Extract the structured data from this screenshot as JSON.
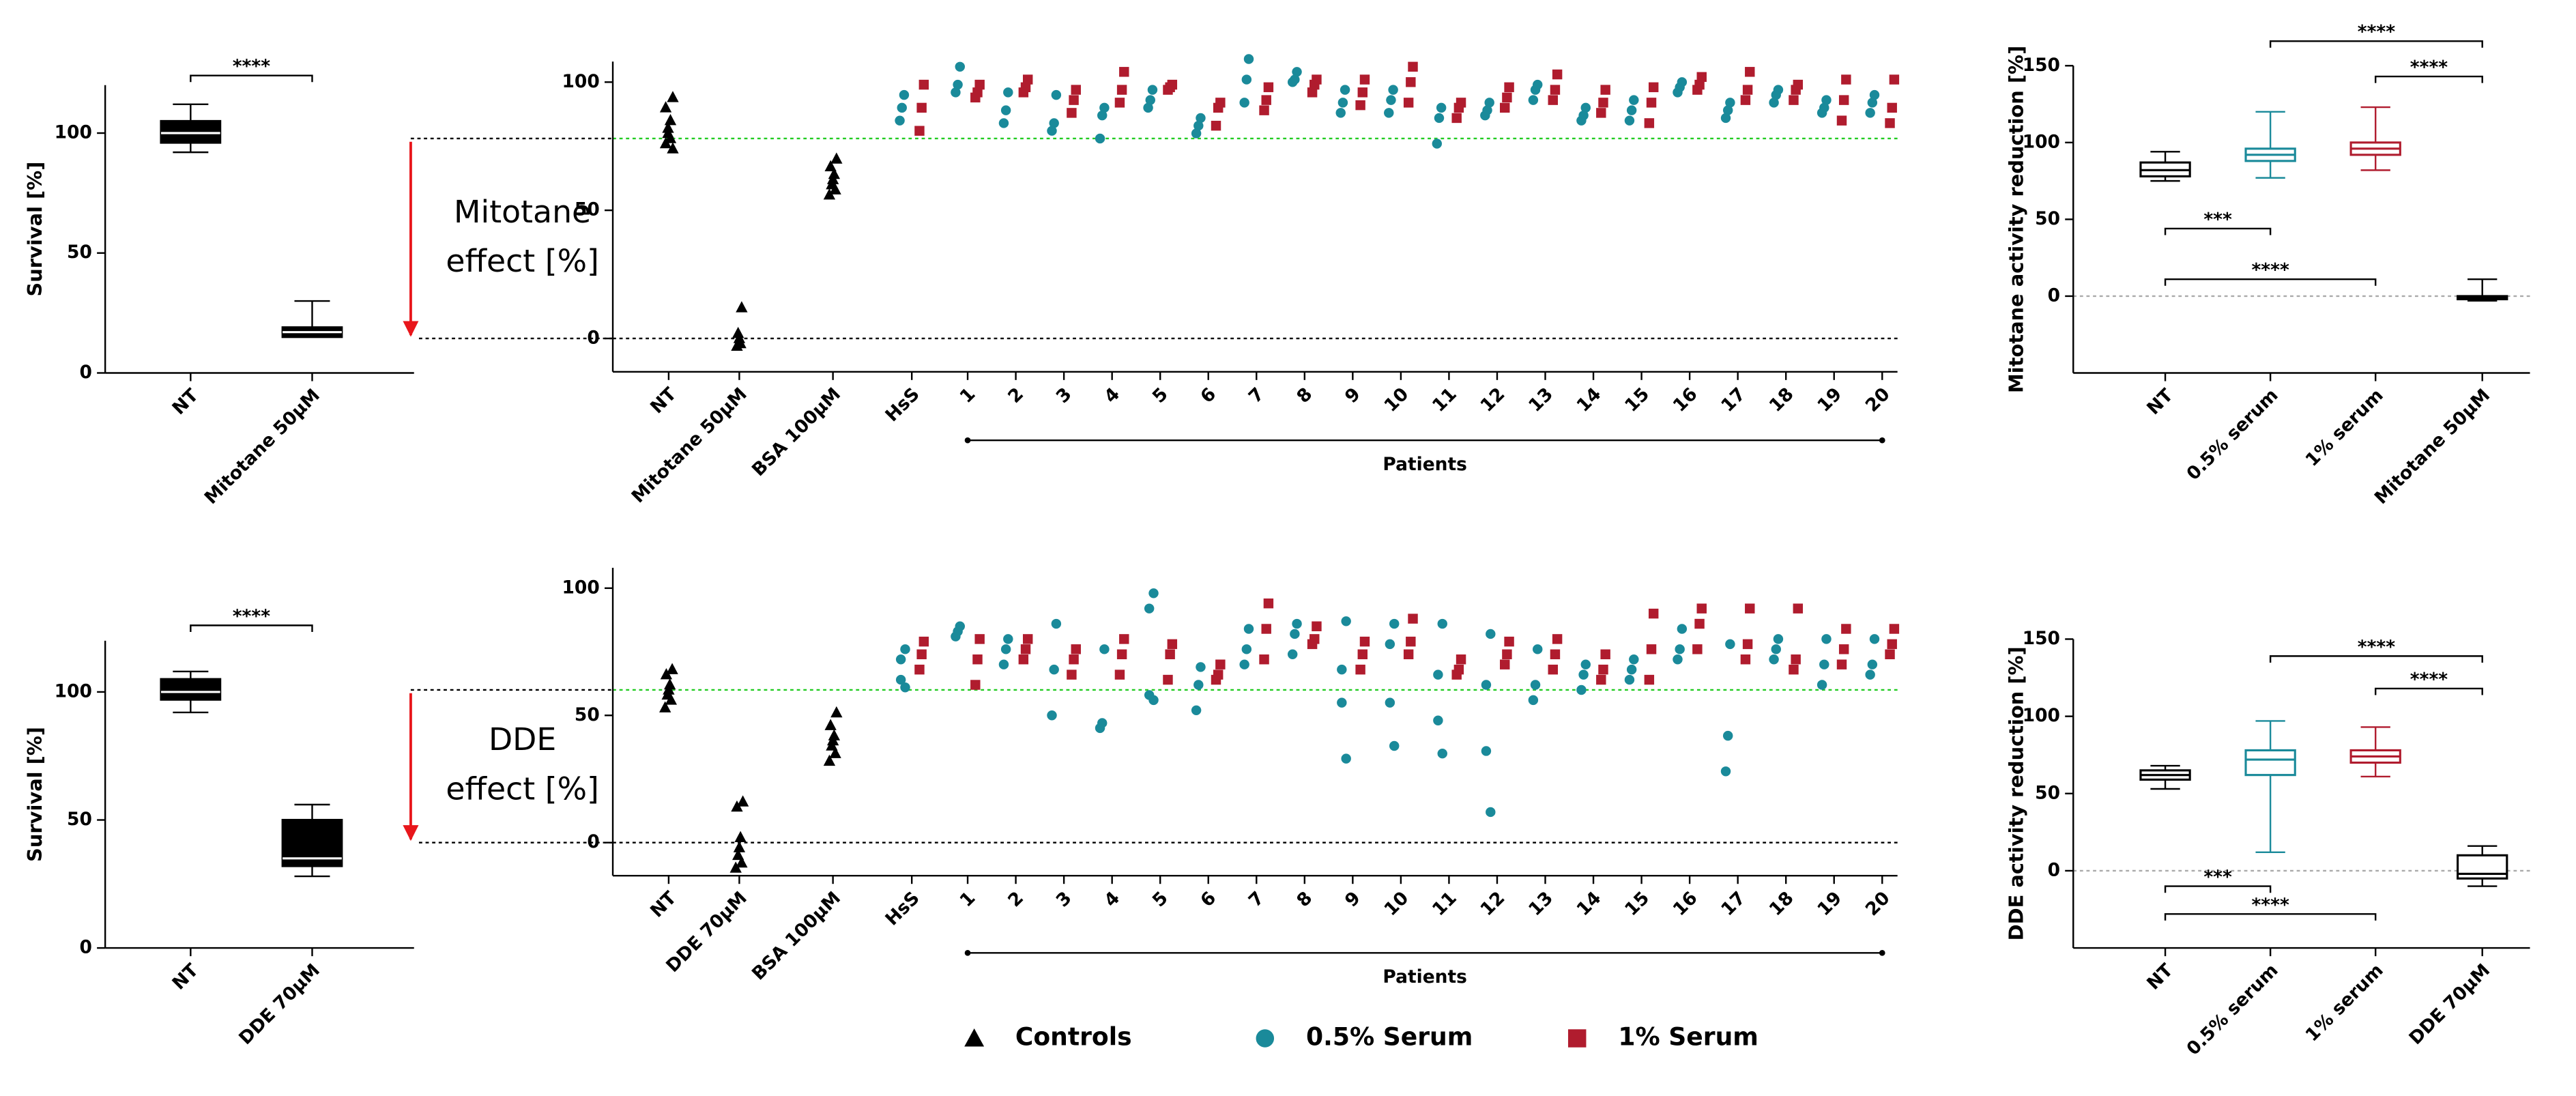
{
  "chart_data": [
    {
      "type": "box",
      "ylabel": "Survival [%]",
      "categories": [
        "NT",
        "Mitotane 50μM"
      ],
      "boxes": [
        {
          "min": 92,
          "q1": 96,
          "median": 100,
          "q3": 105,
          "max": 112
        },
        {
          "min": 15,
          "q1": 15,
          "median": 17,
          "q3": 19,
          "max": 30
        }
      ],
      "colors": [
        "#000000",
        "#000000"
      ],
      "filled": true,
      "ylim": [
        0,
        120
      ],
      "yticks": [
        0,
        50,
        100
      ],
      "significance": [
        {
          "from": 0,
          "to": 1,
          "y": 124,
          "label": "****"
        }
      ]
    },
    {
      "type": "dot",
      "xlabel": "Patients",
      "annotation": [
        "Mitotane",
        "effect [%]"
      ],
      "categories": [
        "NT",
        "Mitotane 50μM",
        "BSA 100μM",
        "HsS",
        "1",
        "2",
        "3",
        "4",
        "5",
        "6",
        "7",
        "8",
        "9",
        "10",
        "11",
        "12",
        "13",
        "14",
        "15",
        "16",
        "17",
        "18",
        "19",
        "20"
      ],
      "ylim": [
        -13,
        108
      ],
      "yticks": [
        0,
        50,
        100
      ],
      "ref_lines": [
        {
          "value": 0,
          "color": "#000000"
        },
        {
          "value": 78,
          "color": "#22cc22"
        }
      ],
      "series": [
        {
          "color": "#000000",
          "marker": "triangle",
          "values": [
            [
              94,
              90,
              85,
              82,
              80,
              78,
              76,
              74
            ],
            [
              12,
              2,
              0,
              -2,
              -3
            ],
            [
              70,
              67,
              64,
              62,
              60,
              58,
              56
            ],
            null,
            null,
            null,
            null,
            null,
            null,
            null,
            null,
            null,
            null,
            null,
            null,
            null,
            null,
            null,
            null,
            null,
            null,
            null,
            null,
            null
          ]
        },
        {
          "color": "#1a8a9a",
          "marker": "circle",
          "values": [
            null,
            null,
            null,
            [
              95,
              90,
              85
            ],
            [
              106,
              99,
              96
            ],
            [
              96,
              89,
              84
            ],
            [
              95,
              84,
              81
            ],
            [
              90,
              87,
              78
            ],
            [
              97,
              93,
              90
            ],
            [
              86,
              83,
              80
            ],
            [
              109,
              101,
              92
            ],
            [
              104,
              101,
              100
            ],
            [
              97,
              92,
              88
            ],
            [
              97,
              93,
              88
            ],
            [
              90,
              86,
              76
            ],
            [
              92,
              89,
              87
            ],
            [
              99,
              97,
              93
            ],
            [
              90,
              87,
              85
            ],
            [
              93,
              89,
              85
            ],
            [
              100,
              98,
              96
            ],
            [
              92,
              89,
              86
            ],
            [
              97,
              95,
              92
            ],
            [
              93,
              90,
              88
            ],
            [
              95,
              92,
              88
            ]
          ]
        },
        {
          "color": "#b01c2e",
          "marker": "square",
          "values": [
            null,
            null,
            null,
            [
              99,
              90,
              81
            ],
            [
              99,
              96,
              94
            ],
            [
              101,
              98,
              96
            ],
            [
              97,
              93,
              88
            ],
            [
              104,
              97,
              92
            ],
            [
              99,
              98,
              97
            ],
            [
              92,
              90,
              83
            ],
            [
              98,
              93,
              89
            ],
            [
              101,
              99,
              96
            ],
            [
              101,
              96,
              91
            ],
            [
              106,
              100,
              92
            ],
            [
              92,
              90,
              86
            ],
            [
              98,
              94,
              90
            ],
            [
              103,
              97,
              93
            ],
            [
              97,
              92,
              88
            ],
            [
              98,
              92,
              84
            ],
            [
              102,
              99,
              97
            ],
            [
              104,
              97,
              93
            ],
            [
              99,
              97,
              93
            ],
            [
              101,
              93,
              85
            ],
            [
              101,
              90,
              84
            ]
          ]
        }
      ]
    },
    {
      "type": "box",
      "ylabel": "Mitotane activity reduction [%]",
      "categories": [
        "NT",
        "0.5% serum",
        "1% serum",
        "Mitotane 50μM"
      ],
      "boxes": [
        {
          "min": 75,
          "q1": 78,
          "median": 82,
          "q3": 87,
          "max": 94
        },
        {
          "min": 77,
          "q1": 88,
          "median": 92,
          "q3": 96,
          "max": 120
        },
        {
          "min": 82,
          "q1": 92,
          "median": 96,
          "q3": 100,
          "max": 123
        },
        {
          "min": -3,
          "q1": -2,
          "median": -1,
          "q3": 0,
          "max": 11
        }
      ],
      "colors": [
        "#000000",
        "#1a8a9a",
        "#b01c2e",
        "#000000"
      ],
      "filled": false,
      "ylim": [
        -50,
        150
      ],
      "yticks": [
        0,
        50,
        100,
        150
      ],
      "ref_lines": [
        {
          "value": 0,
          "color": "#aaaaaa"
        }
      ],
      "significance": [
        {
          "from": 0,
          "to": 1,
          "y": 44,
          "label": "***"
        },
        {
          "from": 0,
          "to": 2,
          "y": 11,
          "label": "****"
        },
        {
          "from": 1,
          "to": 3,
          "y": 166,
          "label": "****"
        },
        {
          "from": 2,
          "to": 3,
          "y": 143,
          "label": "****"
        }
      ]
    },
    {
      "type": "box",
      "ylabel": "Survival [%]",
      "categories": [
        "NT",
        "DDE 70μM"
      ],
      "boxes": [
        {
          "min": 92,
          "q1": 97,
          "median": 100,
          "q3": 105,
          "max": 108
        },
        {
          "min": 28,
          "q1": 32,
          "median": 35,
          "q3": 50,
          "max": 56
        }
      ],
      "colors": [
        "#000000",
        "#000000"
      ],
      "filled": true,
      "ylim": [
        0,
        120
      ],
      "yticks": [
        0,
        50,
        100
      ],
      "significance": [
        {
          "from": 0,
          "to": 1,
          "y": 126,
          "label": "****"
        }
      ]
    },
    {
      "type": "dot",
      "xlabel": "Patients",
      "annotation": [
        "DDE",
        "effect [%]"
      ],
      "categories": [
        "NT",
        "DDE 70μM",
        "BSA 100μM",
        "HsS",
        "1",
        "2",
        "3",
        "4",
        "5",
        "6",
        "7",
        "8",
        "9",
        "10",
        "11",
        "12",
        "13",
        "14",
        "15",
        "16",
        "17",
        "18",
        "19",
        "20"
      ],
      "ylim": [
        -13,
        108
      ],
      "yticks": [
        0,
        50,
        100
      ],
      "ref_lines": [
        {
          "value": 0,
          "color": "#000000"
        },
        {
          "value": 60,
          "color": "#22cc22"
        }
      ],
      "series": [
        {
          "name": "Controls",
          "color": "#000000",
          "marker": "triangle",
          "values": [
            [
              68,
              66,
              62,
              60,
              58,
              56,
              53
            ],
            [
              16,
              14,
              2,
              -2,
              -5,
              -8,
              -10
            ],
            [
              51,
              46,
              42,
              40,
              38,
              35,
              32
            ],
            null,
            null,
            null,
            null,
            null,
            null,
            null,
            null,
            null,
            null,
            null,
            null,
            null,
            null,
            null,
            null,
            null,
            null,
            null,
            null,
            null
          ]
        },
        {
          "name": "0.5% Serum",
          "color": "#1a8a9a",
          "marker": "circle",
          "values": [
            null,
            null,
            null,
            [
              76,
              72,
              64,
              61
            ],
            [
              85,
              83,
              81
            ],
            [
              80,
              76,
              70
            ],
            [
              86,
              68,
              50
            ],
            [
              76,
              47,
              45
            ],
            [
              98,
              92,
              58,
              56
            ],
            [
              69,
              62,
              52
            ],
            [
              84,
              76,
              70
            ],
            [
              86,
              82,
              74
            ],
            [
              87,
              68,
              55,
              33
            ],
            [
              86,
              78,
              55,
              38
            ],
            [
              86,
              66,
              48,
              35
            ],
            [
              82,
              62,
              36,
              12
            ],
            [
              76,
              62,
              56
            ],
            [
              70,
              66,
              60
            ],
            [
              72,
              68,
              64
            ],
            [
              84,
              76,
              72
            ],
            [
              78,
              42,
              28
            ],
            [
              80,
              76,
              72
            ],
            [
              80,
              70,
              62
            ],
            [
              80,
              70,
              66
            ]
          ]
        },
        {
          "name": "1% Serum",
          "color": "#b01c2e",
          "marker": "square",
          "values": [
            null,
            null,
            null,
            [
              79,
              74,
              68
            ],
            [
              80,
              72,
              62
            ],
            [
              80,
              76,
              72
            ],
            [
              76,
              72,
              66
            ],
            [
              80,
              74,
              66
            ],
            [
              78,
              74,
              64
            ],
            [
              70,
              66,
              64
            ],
            [
              94,
              84,
              72
            ],
            [
              85,
              80,
              78
            ],
            [
              79,
              74,
              68
            ],
            [
              88,
              79,
              74
            ],
            [
              72,
              68,
              66
            ],
            [
              79,
              74,
              70
            ],
            [
              80,
              74,
              68
            ],
            [
              74,
              68,
              64
            ],
            [
              90,
              76,
              64
            ],
            [
              92,
              86,
              76
            ],
            [
              92,
              78,
              72
            ],
            [
              92,
              72,
              68
            ],
            [
              84,
              76,
              70
            ],
            [
              84,
              78,
              74
            ]
          ]
        }
      ]
    },
    {
      "type": "box",
      "ylabel": "DDE activity reduction [%]",
      "categories": [
        "NT",
        "0.5% serum",
        "1% serum",
        "DDE 70μM"
      ],
      "boxes": [
        {
          "min": 53,
          "q1": 59,
          "median": 62,
          "q3": 65,
          "max": 68
        },
        {
          "min": 12,
          "q1": 62,
          "median": 72,
          "q3": 78,
          "max": 97
        },
        {
          "min": 61,
          "q1": 70,
          "median": 74,
          "q3": 78,
          "max": 93
        },
        {
          "min": -10,
          "q1": -5,
          "median": -2,
          "q3": 10,
          "max": 16
        }
      ],
      "colors": [
        "#000000",
        "#1a8a9a",
        "#b01c2e",
        "#000000"
      ],
      "filled": false,
      "ylim": [
        -50,
        150
      ],
      "yticks": [
        0,
        50,
        100,
        150
      ],
      "ref_lines": [
        {
          "value": 0,
          "color": "#aaaaaa"
        }
      ],
      "significance": [
        {
          "from": 0,
          "to": 1,
          "y": -10,
          "label": "***"
        },
        {
          "from": 0,
          "to": 2,
          "y": -28,
          "label": "****"
        },
        {
          "from": 1,
          "to": 3,
          "y": 139,
          "label": "****"
        },
        {
          "from": 2,
          "to": 3,
          "y": 118,
          "label": "****"
        }
      ]
    }
  ]
}
